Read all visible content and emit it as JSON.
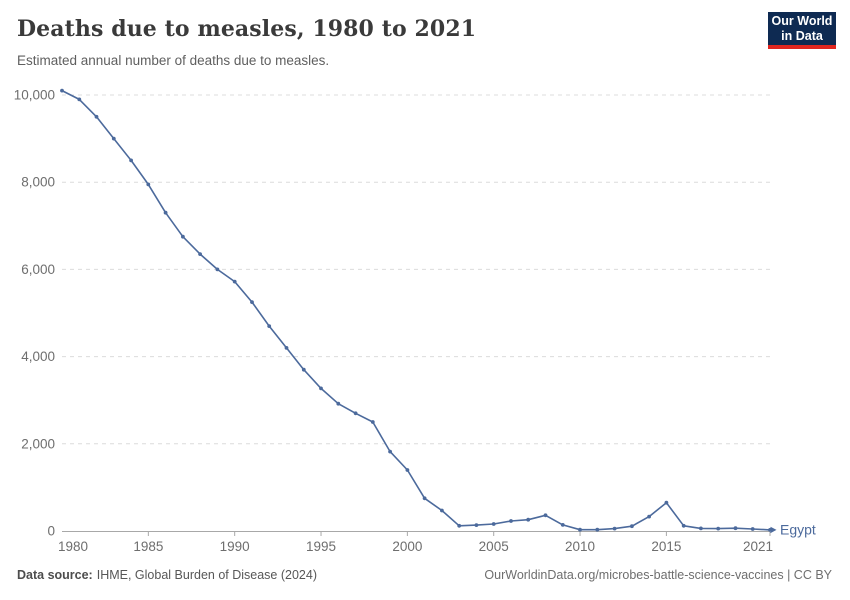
{
  "header": {
    "title": "Deaths due to measles, 1980 to 2021",
    "subtitle": "Estimated annual number of deaths due to measles.",
    "logo": {
      "line1": "Our World",
      "line2": "in Data"
    }
  },
  "chart_data": {
    "type": "line",
    "title": "Deaths due to measles, 1980 to 2021",
    "xlabel": "",
    "ylabel": "",
    "x": [
      1980,
      1981,
      1982,
      1983,
      1984,
      1985,
      1986,
      1987,
      1988,
      1989,
      1990,
      1991,
      1992,
      1993,
      1994,
      1995,
      1996,
      1997,
      1998,
      1999,
      2000,
      2001,
      2002,
      2003,
      2004,
      2005,
      2006,
      2007,
      2008,
      2009,
      2010,
      2011,
      2012,
      2013,
      2014,
      2015,
      2016,
      2017,
      2018,
      2019,
      2020,
      2021
    ],
    "series": [
      {
        "name": "Egypt",
        "color": "#4C6A9C",
        "values": [
          10100,
          9900,
          9500,
          9000,
          8500,
          7950,
          7300,
          6750,
          6350,
          6000,
          5720,
          5250,
          4700,
          4200,
          3700,
          3270,
          2920,
          2700,
          2500,
          1820,
          1400,
          750,
          470,
          120,
          135,
          160,
          230,
          260,
          360,
          140,
          30,
          30,
          55,
          110,
          330,
          650,
          120,
          60,
          55,
          65,
          45,
          25
        ]
      }
    ],
    "xlim": [
      1980,
      2021
    ],
    "ylim": [
      0,
      10000
    ],
    "x_ticks": [
      1980,
      1985,
      1990,
      1995,
      2000,
      2005,
      2010,
      2015,
      2021
    ],
    "y_ticks": [
      0,
      2000,
      4000,
      6000,
      8000,
      10000
    ],
    "y_tick_labels": [
      "0",
      "2,000",
      "4,000",
      "6,000",
      "8,000",
      "10,000"
    ],
    "grid": "horizontal-dashed",
    "legend_position": "end-of-line",
    "markers": true
  },
  "footer": {
    "source_bold": "Data source:",
    "source_rest": "IHME, Global Burden of Disease (2024)",
    "credit": "OurWorldinData.org/microbes-battle-science-vaccines | CC BY"
  },
  "colors": {
    "line": "#4C6A9C",
    "logo_bg": "#0E2A52",
    "logo_accent": "#E0261F",
    "grid": "#dcdcdc",
    "axis": "#a8a8a8",
    "tick_label": "#6e6e6e"
  }
}
